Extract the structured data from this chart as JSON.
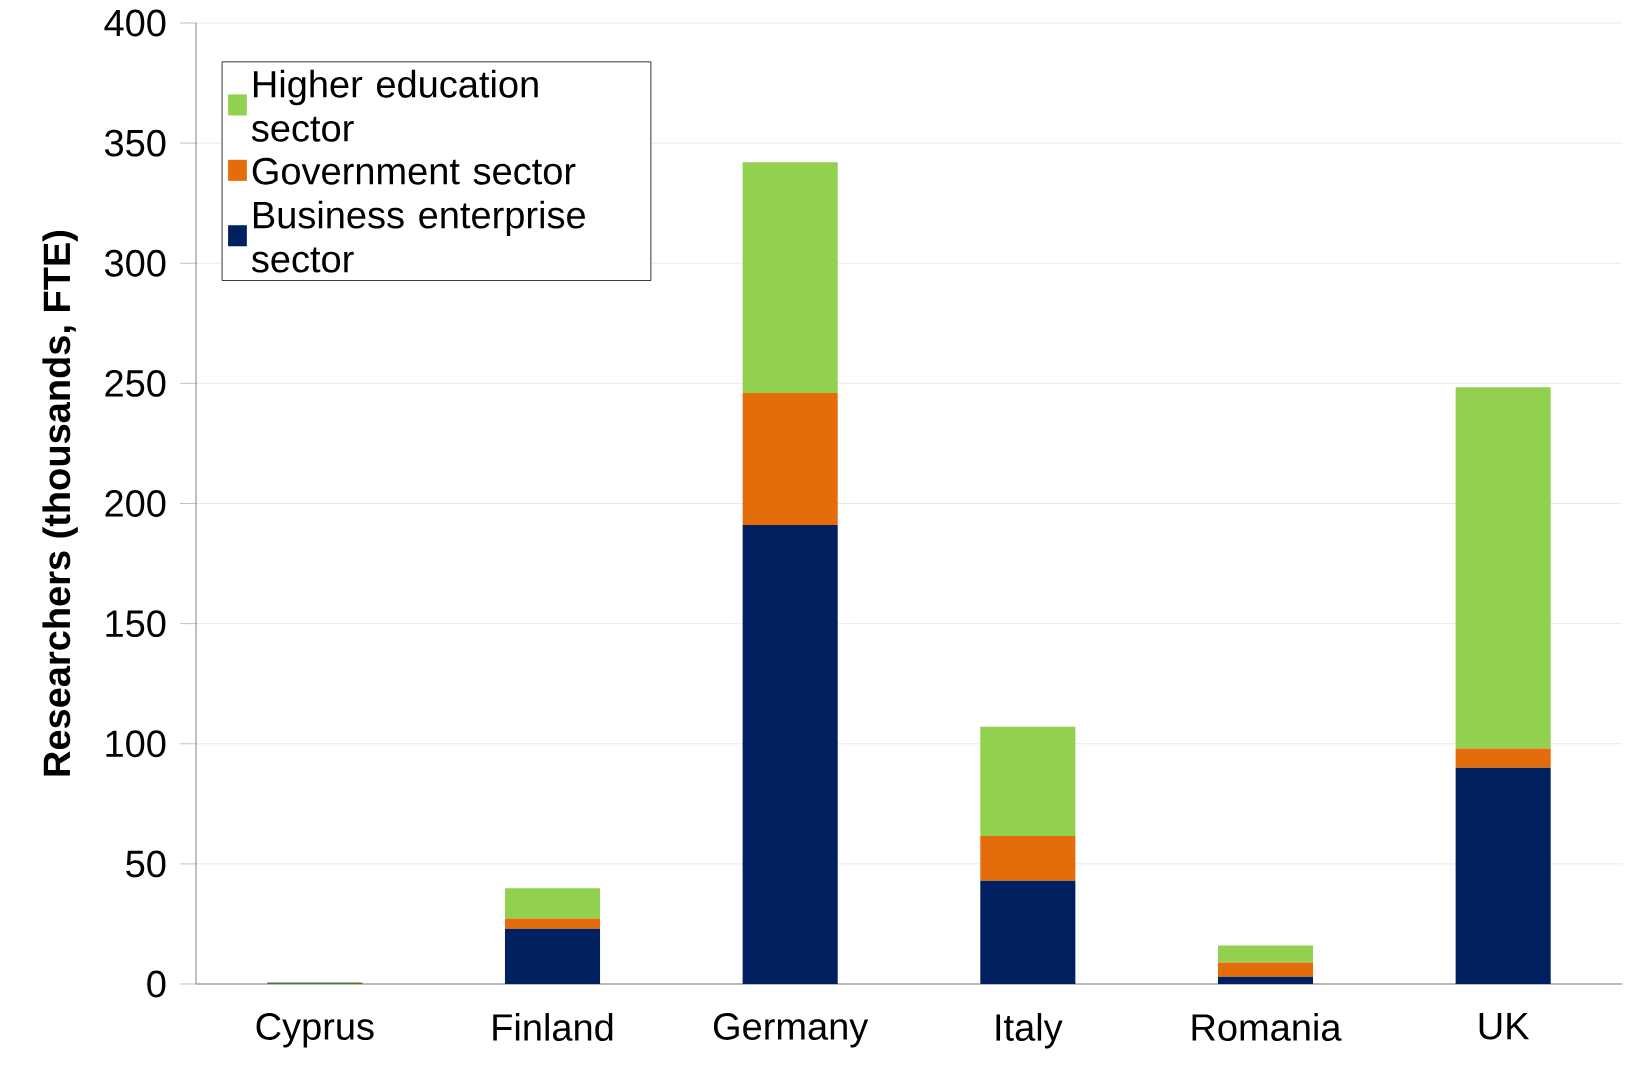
{
  "chart_data": {
    "type": "bar",
    "stacked": true,
    "ylabel": "Researchers (thousands, FTE)",
    "categories": [
      "Cyprus",
      "Finland",
      "Germany",
      "Italy",
      "Romania",
      "UK"
    ],
    "series": [
      {
        "name": "Business enterprise sector",
        "color": "#002060",
        "values": [
          0.2,
          23,
          191,
          43,
          3,
          90
        ]
      },
      {
        "name": "Government sector",
        "color": "#e46c0a",
        "values": [
          0.1,
          4.3,
          55,
          18.6,
          6,
          8
        ]
      },
      {
        "name": "Higher education sector",
        "color": "#92d050",
        "values": [
          0.5,
          12.6,
          96,
          45.5,
          7,
          150.4
        ]
      }
    ],
    "ylim": [
      0,
      400
    ],
    "yticks": [
      0,
      50,
      100,
      150,
      200,
      250,
      300,
      350,
      400
    ],
    "grid": "y",
    "legend": "top left"
  }
}
